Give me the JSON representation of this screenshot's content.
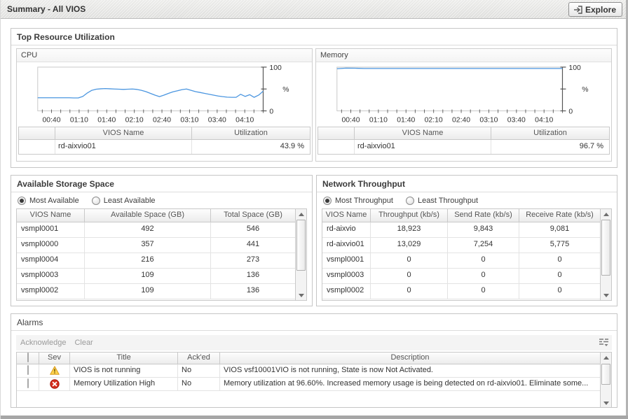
{
  "header": {
    "title": "Summary - All VIOS",
    "explore_button": "Explore"
  },
  "sections": {
    "top_resource": {
      "title": "Top Resource Utilization"
    },
    "storage": {
      "title": "Available Storage Space",
      "radio_options": [
        {
          "label": "Most Available",
          "selected": true
        },
        {
          "label": "Least Available",
          "selected": false
        }
      ],
      "columns": [
        "VIOS Name",
        "Available Space (GB)",
        "Total Space (GB)"
      ],
      "rows": [
        [
          "vsmpl0001",
          "492",
          "546"
        ],
        [
          "vsmpl0000",
          "357",
          "441"
        ],
        [
          "vsmpl0004",
          "216",
          "273"
        ],
        [
          "vsmpl0003",
          "109",
          "136"
        ],
        [
          "vsmpl0002",
          "109",
          "136"
        ]
      ]
    },
    "network": {
      "title": "Network Throughput",
      "radio_options": [
        {
          "label": "Most Throughput",
          "selected": true
        },
        {
          "label": "Least Throughput",
          "selected": false
        }
      ],
      "columns": [
        "VIOS Name",
        "Throughput (kb/s)",
        "Send Rate (kb/s)",
        "Receive Rate (kb/s)"
      ],
      "rows": [
        [
          "rd-aixvio",
          "18,923",
          "9,843",
          "9,081"
        ],
        [
          "rd-aixvio01",
          "13,029",
          "7,254",
          "5,775"
        ],
        [
          "vsmpl0001",
          "0",
          "0",
          "0"
        ],
        [
          "vsmpl0003",
          "0",
          "0",
          "0"
        ],
        [
          "vsmpl0002",
          "0",
          "0",
          "0"
        ]
      ]
    },
    "alarms": {
      "title": "Alarms",
      "actions": {
        "acknowledge": "Acknowledge",
        "clear": "Clear"
      },
      "columns": {
        "sev": "Sev",
        "title": "Title",
        "acked": "Ack'ed",
        "description": "Description"
      },
      "rows": [
        {
          "severity": "warning",
          "title": "VIOS is not running",
          "acked": "No",
          "description": "VIOS vsf10001VIO is not running, State is now Not Activated."
        },
        {
          "severity": "fatal",
          "title": "Memory Utilization High",
          "acked": "No",
          "description": "Memory utilization at 96.60%. Increased memory usage is being detected on rd-aixvio01. Eliminate some..."
        }
      ]
    }
  },
  "chart_data": [
    {
      "id": "cpu",
      "type": "line",
      "title": "CPU",
      "x_ticks": [
        "00:40",
        "01:10",
        "01:40",
        "02:10",
        "02:40",
        "03:10",
        "03:40",
        "04:10"
      ],
      "ylim": [
        0,
        100
      ],
      "y_axis": {
        "top": "100",
        "bottom": "0",
        "unit": "%"
      },
      "line_color": "#4b96e0",
      "grid": false,
      "legend_position": "bottom-table",
      "series": [
        {
          "name": "rd-aixvio01",
          "values": [
            30,
            30,
            30,
            30,
            30,
            30,
            30,
            30,
            29.5,
            29.5,
            33,
            41,
            47,
            49.5,
            50.5,
            51,
            50.5,
            50,
            49.5,
            49,
            49.5,
            50,
            49,
            47,
            44,
            40,
            36,
            32.5,
            36,
            40,
            43.5,
            46,
            48.5,
            50,
            47,
            44,
            42,
            40,
            38,
            36,
            34,
            32.5,
            31.5,
            31,
            31,
            38,
            33,
            37,
            31,
            36,
            45
          ]
        }
      ],
      "legend": {
        "columns": [
          "VIOS Name",
          "Utilization"
        ],
        "rows": [
          {
            "swatch_color": "#2e8be4",
            "name": "rd-aixvio01",
            "utilization": "43.9 %"
          }
        ]
      }
    },
    {
      "id": "memory",
      "type": "line",
      "title": "Memory",
      "x_ticks": [
        "00:40",
        "01:10",
        "01:40",
        "02:10",
        "02:40",
        "03:10",
        "03:40",
        "04:10"
      ],
      "ylim": [
        0,
        100
      ],
      "y_axis": {
        "top": "100",
        "bottom": "0",
        "unit": "%"
      },
      "line_color": "#4b96e0",
      "grid": false,
      "legend_position": "bottom-table",
      "series": [
        {
          "name": "rd-aixvio01",
          "values": [
            96.3,
            97.8,
            97.4,
            97,
            97,
            97,
            97,
            97,
            97,
            97,
            97,
            97,
            97,
            97,
            97,
            97,
            97,
            97,
            97,
            97,
            97,
            97,
            97,
            97,
            97,
            97
          ]
        }
      ],
      "legend": {
        "columns": [
          "VIOS Name",
          "Utilization"
        ],
        "rows": [
          {
            "swatch_color": "#2e8be4",
            "name": "rd-aixvio01",
            "utilization": "96.7 %"
          }
        ]
      }
    }
  ]
}
